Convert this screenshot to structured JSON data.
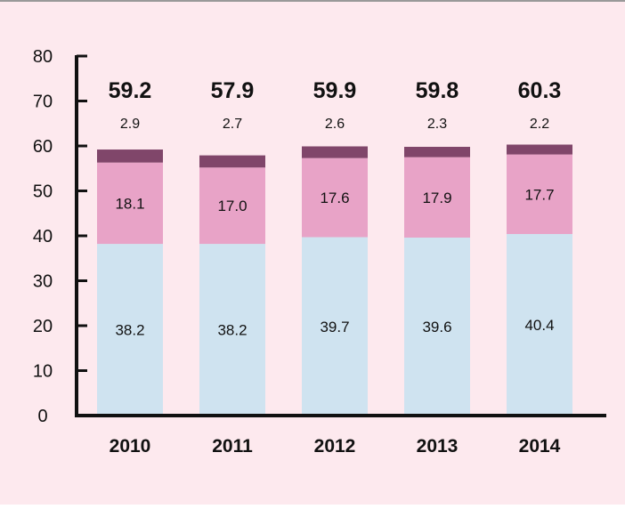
{
  "chart_data": {
    "type": "bar",
    "stacked": true,
    "categories": [
      "2010",
      "2011",
      "2012",
      "2013",
      "2014"
    ],
    "series": [
      {
        "values": [
          38.2,
          38.2,
          39.7,
          39.6,
          40.4
        ],
        "color": "#cfe3f0"
      },
      {
        "values": [
          18.1,
          17.0,
          17.6,
          17.9,
          17.7
        ],
        "color": "#e8a3c7"
      },
      {
        "values": [
          2.9,
          2.7,
          2.6,
          2.3,
          2.2
        ],
        "color": "#80466a"
      }
    ],
    "totals": [
      59.2,
      57.9,
      59.9,
      59.8,
      60.3
    ],
    "top_labels": [
      "2.9",
      "2.7",
      "2.6",
      "2.3",
      "2.2"
    ],
    "mid_labels": [
      "18.1",
      "17.0",
      "17.6",
      "17.9",
      "17.7"
    ],
    "bottom_labels": [
      "38.2",
      "38.2",
      "39.7",
      "39.6",
      "40.4"
    ],
    "total_labels": [
      "59.2",
      "57.9",
      "59.9",
      "59.8",
      "60.3"
    ],
    "ylim": [
      0,
      80
    ],
    "yticks": [
      "0",
      "10",
      "20",
      "30",
      "40",
      "50",
      "60",
      "70",
      "80"
    ],
    "grid": false,
    "colors": {
      "background": "#fde9ee",
      "axis": "#111111",
      "text": "#111111",
      "top_border": "#999999"
    }
  }
}
